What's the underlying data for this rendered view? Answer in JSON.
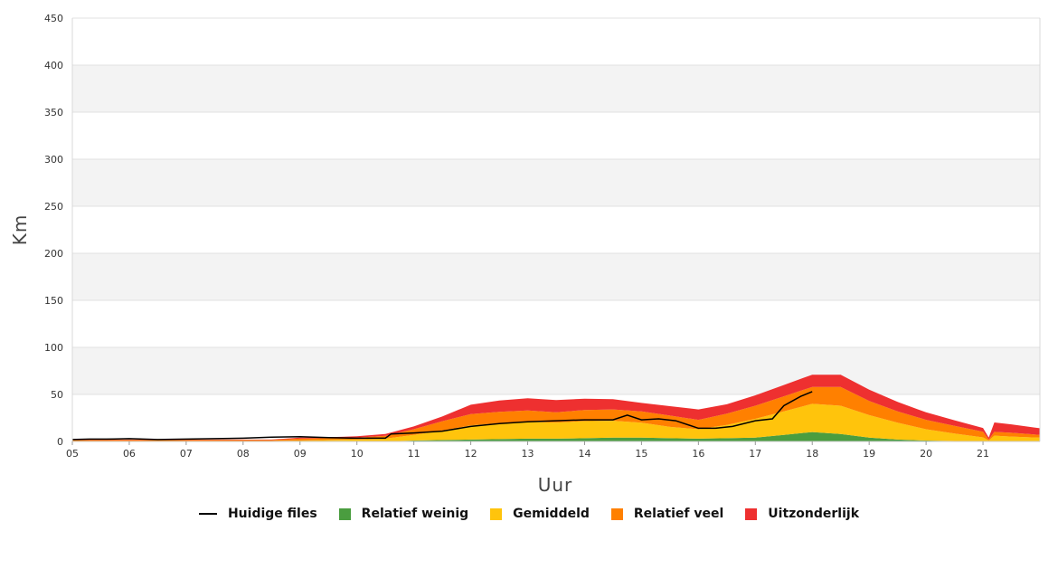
{
  "chart_data": {
    "type": "area",
    "xlabel": "Uur",
    "ylabel": "Km",
    "ylim": [
      0,
      450
    ],
    "xlim": [
      5,
      22
    ],
    "y_ticks": [
      0,
      50,
      100,
      150,
      200,
      250,
      300,
      350,
      400,
      450
    ],
    "x_ticks": [
      "05",
      "06",
      "07",
      "08",
      "09",
      "10",
      "11",
      "12",
      "13",
      "14",
      "15",
      "16",
      "17",
      "18",
      "19",
      "20",
      "21"
    ],
    "grid": "alternating horizontal bands",
    "legend_position": "bottom",
    "x": [
      5,
      5.5,
      6,
      6.5,
      7,
      7.5,
      8,
      8.5,
      9,
      9.5,
      10,
      10.5,
      11,
      11.5,
      12,
      12.5,
      13,
      13.5,
      14,
      14.5,
      15,
      15.5,
      16,
      16.5,
      17,
      17.5,
      18,
      18.5,
      19,
      19.5,
      20,
      20.5,
      21,
      21.1,
      21.2,
      21.5,
      22
    ],
    "series": [
      {
        "name": "Relatief weinig",
        "color": "#4a9d3f",
        "values": [
          0,
          0,
          0,
          0,
          0,
          0,
          0,
          0,
          0,
          0,
          0,
          0,
          1,
          1.5,
          2,
          2.5,
          3,
          3,
          3.5,
          4,
          4,
          3.5,
          3,
          3.5,
          4,
          7,
          10,
          8,
          4,
          2,
          1,
          0.5,
          0.3,
          0,
          0.2,
          0.2,
          0
        ]
      },
      {
        "name": "Gemiddeld",
        "color": "#ffc40c",
        "values": [
          0.5,
          0.5,
          0.5,
          0.5,
          0.5,
          0.5,
          0.5,
          0.5,
          1,
          1.5,
          2,
          3,
          6,
          10,
          15,
          17,
          18,
          17,
          18,
          18,
          16,
          12,
          10,
          14,
          20,
          25,
          30,
          30,
          24,
          18,
          12,
          8,
          4,
          1,
          6,
          5,
          4
        ]
      },
      {
        "name": "Relatief veel",
        "color": "#ff8000",
        "values": [
          1,
          1,
          1,
          1,
          1,
          1,
          1,
          1,
          2,
          2,
          2,
          3,
          6,
          10,
          12,
          12,
          12,
          11,
          12,
          12,
          12,
          12,
          10,
          12,
          14,
          16,
          18,
          20,
          15,
          12,
          10,
          8,
          6,
          1,
          4,
          4,
          3
        ]
      },
      {
        "name": "Uitzonderlijk",
        "color": "#ee3030",
        "values": [
          0.5,
          0.5,
          0.5,
          0.5,
          0.5,
          0.5,
          0.5,
          0.5,
          1,
          1,
          1.5,
          2,
          3,
          5,
          10,
          12,
          13,
          13,
          12,
          11,
          9,
          10,
          11,
          10,
          11,
          12,
          13,
          13,
          12,
          10,
          8,
          6,
          4,
          2,
          10,
          9,
          7
        ]
      }
    ],
    "line_series": {
      "name": "Huidige files",
      "color": "#000000",
      "x": [
        5,
        5.3,
        5.6,
        6,
        6.5,
        7,
        7.5,
        8,
        8.5,
        9,
        9.5,
        10,
        10.5,
        10.6,
        11,
        11.5,
        12,
        12.5,
        13,
        13.5,
        14,
        14.5,
        14.75,
        15,
        15.3,
        15.6,
        16,
        16.3,
        16.6,
        17,
        17.3,
        17.5,
        17.8,
        18
      ],
      "y": [
        2,
        2.5,
        2.5,
        3,
        2,
        2.5,
        3,
        3.5,
        4.5,
        5,
        4,
        3.5,
        3.5,
        8,
        9,
        11,
        16,
        19,
        21,
        22,
        23,
        23,
        28,
        23,
        24,
        22,
        14,
        14,
        16,
        22,
        24,
        38,
        48,
        53
      ]
    }
  },
  "legend": {
    "current": "Huidige files",
    "low": "Relatief weinig",
    "avg": "Gemiddeld",
    "high": "Relatief veel",
    "exceptional": "Uitzonderlijk"
  }
}
